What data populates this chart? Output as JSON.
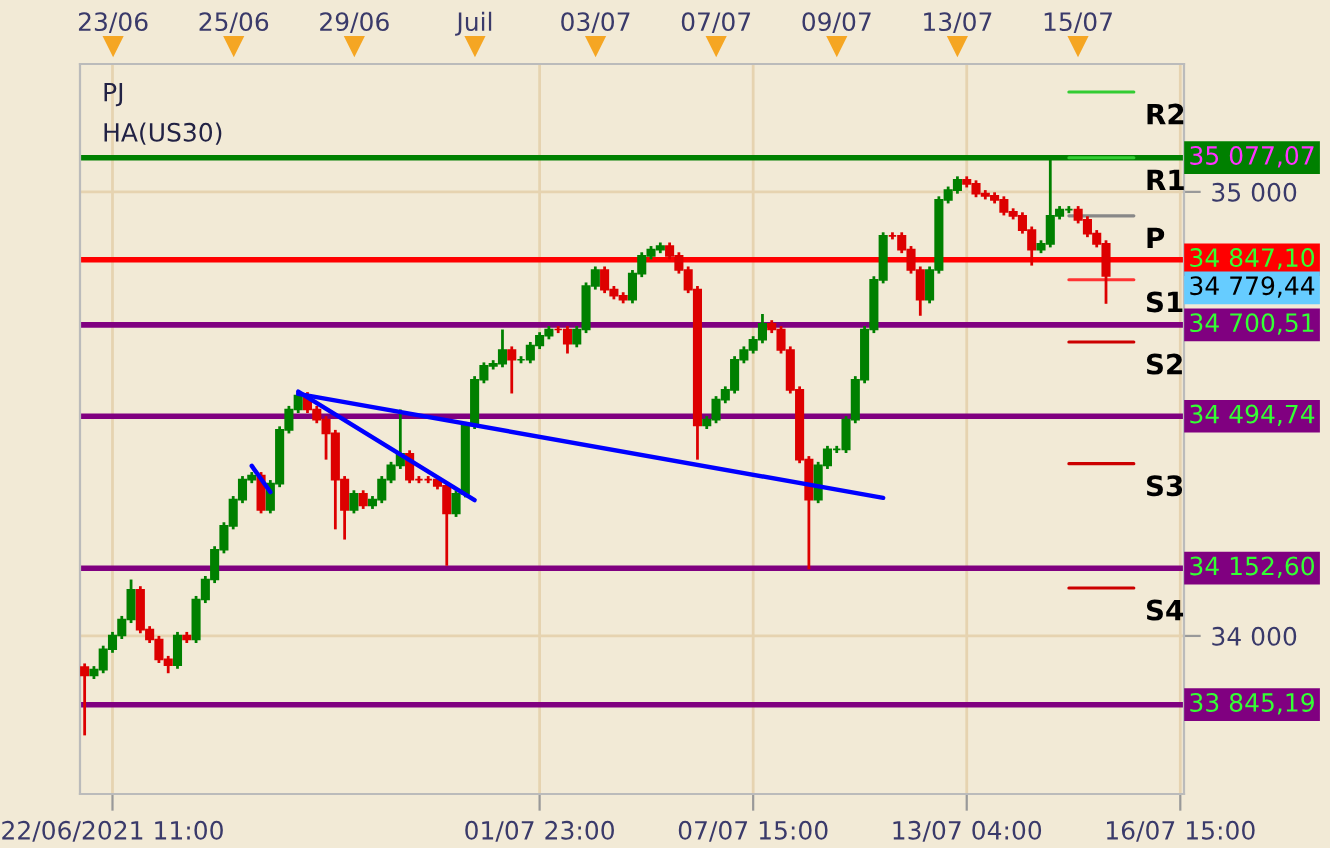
{
  "chart_data": {
    "type": "candlestick",
    "annotations": [
      "PJ",
      "HA(US30)",
      "34 779,44",
      "23/06",
      "25/06",
      "29/06",
      "Juil",
      "03/07",
      "07/07",
      "09/07",
      "13/07",
      "15/07"
    ],
    "categories": [
      null,
      null,
      null,
      "22/06/2021 11:00",
      null,
      null,
      null,
      null,
      null,
      null,
      null,
      null,
      null,
      null,
      null,
      null,
      null,
      null,
      null,
      null,
      null,
      null,
      null,
      null,
      null,
      null,
      null,
      null,
      null,
      null,
      null,
      null,
      null,
      null,
      null,
      null,
      null,
      null,
      null,
      null,
      null,
      null,
      null,
      null,
      null,
      null,
      null,
      null,
      null,
      "01/07 23:00",
      null,
      null,
      null,
      null,
      null,
      null,
      null,
      null,
      null,
      null,
      null,
      null,
      null,
      null,
      null,
      null,
      null,
      null,
      null,
      null,
      null,
      null,
      "07/07 15:00",
      null,
      null,
      null,
      null,
      null,
      null,
      null,
      null,
      null,
      null,
      null,
      null,
      null,
      null,
      null,
      null,
      null,
      null,
      null,
      null,
      null,
      null,
      "13/07 04:00",
      null,
      null,
      null,
      null,
      null,
      null,
      null,
      null,
      null,
      null,
      null,
      null,
      null,
      null,
      null,
      null,
      null,
      null,
      null,
      null,
      null,
      null,
      "16/07 15:00"
    ],
    "ohlc": [
      [
        33930,
        33938,
        33776,
        33911
      ],
      [
        33911,
        33932,
        33903,
        33924
      ],
      [
        33924,
        33978,
        33916,
        33970
      ],
      [
        33970,
        34009,
        33962,
        34001
      ],
      [
        34001,
        34045,
        33993,
        34037
      ],
      [
        34037,
        34127,
        34029,
        34104
      ],
      [
        34104,
        34112,
        34006,
        34014
      ],
      [
        34014,
        34022,
        33984,
        33992
      ],
      [
        33992,
        34000,
        33939,
        33947
      ],
      [
        33947,
        33955,
        33916,
        33934
      ],
      [
        33934,
        34009,
        33926,
        34001
      ],
      [
        34001,
        34009,
        33984,
        33992
      ],
      [
        33992,
        34090,
        33984,
        34082
      ],
      [
        34082,
        34135,
        34074,
        34127
      ],
      [
        34127,
        34202,
        34119,
        34194
      ],
      [
        34194,
        34256,
        34186,
        34248
      ],
      [
        34248,
        34315,
        34240,
        34307
      ],
      [
        34307,
        34360,
        34299,
        34352
      ],
      [
        34352,
        34369,
        34344,
        34361
      ],
      [
        34361,
        34369,
        34276,
        34284
      ],
      [
        34284,
        34351,
        34276,
        34343
      ],
      [
        34343,
        34472,
        34335,
        34464
      ],
      [
        34464,
        34518,
        34456,
        34510
      ],
      [
        34510,
        34549,
        34502,
        34541
      ],
      [
        34541,
        34549,
        34502,
        34510
      ],
      [
        34510,
        34518,
        34479,
        34487
      ],
      [
        34487,
        34495,
        34397,
        34456
      ],
      [
        34456,
        34464,
        34240,
        34352
      ],
      [
        34352,
        34360,
        34217,
        34284
      ],
      [
        34284,
        34328,
        34276,
        34320
      ],
      [
        34320,
        34328,
        34286,
        34294
      ],
      [
        34294,
        34315,
        34286,
        34307
      ],
      [
        34307,
        34360,
        34299,
        34352
      ],
      [
        34352,
        34392,
        34344,
        34384
      ],
      [
        34384,
        34510,
        34376,
        34410
      ],
      [
        34410,
        34418,
        34344,
        34352
      ],
      [
        34352,
        34360,
        34344,
        34352
      ],
      [
        34352,
        34360,
        34344,
        34352
      ],
      [
        34352,
        34360,
        34330,
        34338
      ],
      [
        34338,
        34346,
        34158,
        34276
      ],
      [
        34276,
        34328,
        34268,
        34320
      ],
      [
        34320,
        34482,
        34312,
        34474
      ],
      [
        34474,
        34585,
        34466,
        34577
      ],
      [
        34577,
        34616,
        34569,
        34608
      ],
      [
        34608,
        34621,
        34600,
        34613
      ],
      [
        34613,
        34690,
        34605,
        34644
      ],
      [
        34644,
        34652,
        34546,
        34622
      ],
      [
        34622,
        34630,
        34614,
        34622
      ],
      [
        34622,
        34662,
        34614,
        34654
      ],
      [
        34654,
        34684,
        34646,
        34676
      ],
      [
        34676,
        34698,
        34668,
        34690
      ],
      [
        34690,
        34698,
        34682,
        34690
      ],
      [
        34690,
        34698,
        34636,
        34658
      ],
      [
        34658,
        34698,
        34650,
        34690
      ],
      [
        34690,
        34796,
        34682,
        34788
      ],
      [
        34788,
        34832,
        34780,
        34824
      ],
      [
        34824,
        34832,
        34772,
        34780
      ],
      [
        34780,
        34788,
        34758,
        34766
      ],
      [
        34766,
        34774,
        34749,
        34757
      ],
      [
        34757,
        34824,
        34749,
        34816
      ],
      [
        34816,
        34864,
        34808,
        34856
      ],
      [
        34856,
        34878,
        34848,
        34870
      ],
      [
        34870,
        34886,
        34862,
        34878
      ],
      [
        34878,
        34886,
        34848,
        34856
      ],
      [
        34856,
        34864,
        34816,
        34824
      ],
      [
        34824,
        34832,
        34772,
        34780
      ],
      [
        34780,
        34788,
        34397,
        34474
      ],
      [
        34474,
        34495,
        34466,
        34487
      ],
      [
        34487,
        34540,
        34479,
        34532
      ],
      [
        34532,
        34562,
        34524,
        34554
      ],
      [
        34554,
        34630,
        34546,
        34622
      ],
      [
        34622,
        34652,
        34614,
        34644
      ],
      [
        34644,
        34675,
        34636,
        34667
      ],
      [
        34667,
        34725,
        34659,
        34703
      ],
      [
        34703,
        34711,
        34682,
        34690
      ],
      [
        34690,
        34698,
        34636,
        34644
      ],
      [
        34644,
        34652,
        34546,
        34554
      ],
      [
        34554,
        34562,
        34389,
        34397
      ],
      [
        34397,
        34405,
        34150,
        34307
      ],
      [
        34307,
        34392,
        34299,
        34384
      ],
      [
        34384,
        34428,
        34376,
        34420
      ],
      [
        34420,
        34428,
        34412,
        34420
      ],
      [
        34420,
        34495,
        34412,
        34487
      ],
      [
        34487,
        34585,
        34479,
        34577
      ],
      [
        34577,
        34698,
        34569,
        34690
      ],
      [
        34690,
        34810,
        34682,
        34802
      ],
      [
        34802,
        34909,
        34794,
        34901
      ],
      [
        34901,
        34909,
        34893,
        34901
      ],
      [
        34901,
        34909,
        34862,
        34870
      ],
      [
        34870,
        34878,
        34816,
        34824
      ],
      [
        34824,
        34832,
        34721,
        34757
      ],
      [
        34757,
        34832,
        34749,
        34824
      ],
      [
        34824,
        34990,
        34816,
        34982
      ],
      [
        34982,
        35012,
        34974,
        35004
      ],
      [
        35004,
        35035,
        34996,
        35027
      ],
      [
        35027,
        35035,
        35010,
        35018
      ],
      [
        35018,
        35026,
        34988,
        34996
      ],
      [
        34996,
        35004,
        34983,
        34991
      ],
      [
        34991,
        34999,
        34974,
        34982
      ],
      [
        34982,
        34990,
        34947,
        34955
      ],
      [
        34955,
        34963,
        34938,
        34946
      ],
      [
        34946,
        34954,
        34906,
        34914
      ],
      [
        34914,
        34922,
        34834,
        34870
      ],
      [
        34870,
        34891,
        34862,
        34883
      ],
      [
        34883,
        35081,
        34875,
        34946
      ],
      [
        34946,
        34968,
        34938,
        34960
      ],
      [
        34960,
        34968,
        34952,
        34960
      ],
      [
        34960,
        34968,
        34929,
        34937
      ],
      [
        34937,
        34945,
        34898,
        34906
      ],
      [
        34906,
        34914,
        34875,
        34883
      ],
      [
        34883,
        34891,
        34748,
        34811
      ],
      null,
      null,
      null,
      null,
      null,
      null,
      null,
      null
    ],
    "colors": [
      "#dd0000",
      "#008000",
      "#008000",
      "#008000",
      "#008000",
      "#008000",
      "#dd0000",
      "#dd0000",
      "#dd0000",
      "#dd0000",
      "#008000",
      "#dd0000",
      "#008000",
      "#008000",
      "#008000",
      "#008000",
      "#008000",
      "#008000",
      "#008000",
      "#dd0000",
      "#008000",
      "#008000",
      "#008000",
      "#008000",
      "#dd0000",
      "#dd0000",
      "#dd0000",
      "#dd0000",
      "#dd0000",
      "#008000",
      "#dd0000",
      "#008000",
      "#008000",
      "#008000",
      "#008000",
      "#dd0000",
      "#dd0000",
      "#dd0000",
      "#dd0000",
      "#dd0000",
      "#008000",
      "#008000",
      "#008000",
      "#008000",
      "#008000",
      "#008000",
      "#dd0000",
      "#008000",
      "#008000",
      "#008000",
      "#008000",
      "#dd0000",
      "#dd0000",
      "#008000",
      "#008000",
      "#008000",
      "#dd0000",
      "#dd0000",
      "#dd0000",
      "#008000",
      "#008000",
      "#008000",
      "#008000",
      "#dd0000",
      "#dd0000",
      "#dd0000",
      "#dd0000",
      "#008000",
      "#008000",
      "#008000",
      "#008000",
      "#008000",
      "#008000",
      "#008000",
      "#dd0000",
      "#dd0000",
      "#dd0000",
      "#dd0000",
      "#dd0000",
      "#008000",
      "#008000",
      "#008000",
      "#008000",
      "#008000",
      "#008000",
      "#008000",
      "#008000",
      "#dd0000",
      "#dd0000",
      "#dd0000",
      "#dd0000",
      "#008000",
      "#008000",
      "#008000",
      "#008000",
      "#dd0000",
      "#dd0000",
      "#dd0000",
      "#dd0000",
      "#dd0000",
      "#dd0000",
      "#dd0000",
      "#dd0000",
      "#008000",
      "#008000",
      "#008000",
      "#008000",
      "#dd0000",
      "#dd0000",
      "#dd0000",
      "#dd0000",
      null,
      null,
      null,
      null,
      null,
      null,
      null,
      null
    ],
    "series": [
      {
        "type": "line",
        "color": "#0000ff",
        "values": [
          null,
          null,
          null,
          null,
          null,
          null,
          null,
          null,
          null,
          null,
          null,
          null,
          null,
          null,
          null,
          null,
          null,
          null,
          null,
          null,
          null,
          null,
          null,
          34545,
          null,
          null,
          null,
          null,
          null,
          null,
          null,
          null,
          null,
          null,
          null,
          null,
          null,
          null,
          null,
          null,
          null,
          null,
          null,
          null,
          null,
          null,
          null,
          null,
          null,
          null,
          null,
          null,
          null,
          null,
          null,
          null,
          null,
          null,
          null,
          null,
          null,
          null,
          null,
          null,
          null,
          null,
          null,
          null,
          null,
          null,
          null,
          null,
          null,
          null,
          null,
          null,
          null,
          null,
          null,
          null,
          null,
          null,
          null,
          null,
          null,
          null,
          34311,
          null,
          null,
          null,
          null,
          null,
          null,
          null,
          null,
          null,
          null,
          null,
          null,
          null,
          null,
          null,
          null,
          null,
          null,
          null,
          null,
          null,
          null,
          null,
          null,
          null,
          null,
          null,
          null,
          null,
          null,
          null,
          null
        ]
      },
      {
        "type": "line",
        "color": "#0000ff",
        "values": [
          null,
          null,
          null,
          null,
          null,
          null,
          null,
          null,
          null,
          null,
          null,
          null,
          null,
          null,
          null,
          null,
          null,
          null,
          null,
          null,
          null,
          null,
          null,
          34550,
          null,
          null,
          null,
          null,
          null,
          null,
          null,
          null,
          null,
          null,
          null,
          null,
          null,
          null,
          null,
          null,
          null,
          null,
          34306,
          null,
          null,
          null,
          null,
          null,
          null,
          null,
          null,
          null,
          null,
          null,
          null,
          null,
          null,
          null,
          null,
          null,
          null,
          null,
          null,
          null,
          null,
          null,
          null,
          null,
          null,
          null,
          null,
          null,
          null,
          null,
          null,
          null,
          null,
          null,
          null,
          null,
          null,
          null,
          null,
          null,
          null,
          null,
          null,
          null,
          null,
          null,
          null,
          null,
          null,
          null,
          null,
          null,
          null,
          null,
          null,
          null,
          null,
          null,
          null,
          null,
          null,
          null,
          null,
          null,
          null,
          null,
          null,
          null,
          null,
          null,
          null,
          null,
          null,
          null,
          null
        ]
      },
      {
        "type": "line",
        "color": "#0000ff",
        "values": [
          null,
          null,
          null,
          null,
          null,
          null,
          null,
          null,
          null,
          null,
          null,
          null,
          null,
          null,
          null,
          null,
          null,
          null,
          34383,
          null,
          34324,
          null,
          null,
          null,
          null,
          null,
          null,
          null,
          null,
          null,
          null,
          null,
          null,
          null,
          null,
          null,
          null,
          null,
          null,
          null,
          null,
          null,
          null,
          null,
          null,
          null,
          null,
          null,
          null,
          null,
          null,
          null,
          null,
          null,
          null,
          null,
          null,
          null,
          null,
          null,
          null,
          null,
          null,
          null,
          null,
          null,
          null,
          null,
          null,
          null,
          null,
          null,
          null,
          null,
          null,
          null,
          null,
          null,
          null,
          null,
          null,
          null,
          null,
          null,
          null,
          null,
          null,
          null,
          null,
          null,
          null,
          null,
          null,
          null,
          null,
          null,
          null,
          null,
          null,
          null,
          null,
          null,
          null,
          null,
          null,
          null,
          null,
          null,
          null,
          null,
          null,
          null,
          null,
          null,
          null,
          null,
          null,
          null,
          null
        ]
      },
      {
        "type": "line",
        "name": "R2",
        "color": "#33cc33",
        "values": [
          null,
          null,
          null,
          null,
          null,
          null,
          null,
          null,
          null,
          null,
          null,
          null,
          null,
          null,
          null,
          null,
          null,
          null,
          null,
          null,
          null,
          null,
          null,
          null,
          null,
          null,
          null,
          null,
          null,
          null,
          null,
          null,
          null,
          null,
          null,
          null,
          null,
          null,
          null,
          null,
          null,
          null,
          null,
          null,
          null,
          null,
          null,
          null,
          null,
          null,
          null,
          null,
          null,
          null,
          null,
          null,
          null,
          null,
          null,
          null,
          null,
          null,
          null,
          null,
          null,
          null,
          null,
          null,
          null,
          null,
          null,
          null,
          null,
          null,
          null,
          null,
          null,
          null,
          null,
          null,
          null,
          null,
          null,
          null,
          null,
          null,
          null,
          null,
          null,
          null,
          null,
          null,
          null,
          null,
          null,
          null,
          null,
          null,
          null,
          null,
          null,
          null,
          null,
          null,
          null,
          null,
          35225,
          null,
          null,
          null,
          null,
          null,
          null,
          35225,
          null,
          null,
          null,
          null,
          null
        ]
      },
      {
        "type": "line",
        "name": "R1",
        "color": "#33cc33",
        "values": [
          null,
          null,
          null,
          null,
          null,
          null,
          null,
          null,
          null,
          null,
          null,
          null,
          null,
          null,
          null,
          null,
          null,
          null,
          null,
          null,
          null,
          null,
          null,
          null,
          null,
          null,
          null,
          null,
          null,
          null,
          null,
          null,
          null,
          null,
          null,
          null,
          null,
          null,
          null,
          null,
          null,
          null,
          null,
          null,
          null,
          null,
          null,
          null,
          null,
          null,
          null,
          null,
          null,
          null,
          null,
          null,
          null,
          null,
          null,
          null,
          null,
          null,
          null,
          null,
          null,
          null,
          null,
          null,
          null,
          null,
          null,
          null,
          null,
          null,
          null,
          null,
          null,
          null,
          null,
          null,
          null,
          null,
          null,
          null,
          null,
          null,
          null,
          null,
          null,
          null,
          null,
          null,
          null,
          null,
          null,
          null,
          null,
          null,
          null,
          null,
          null,
          null,
          null,
          null,
          null,
          null,
          35077,
          null,
          null,
          null,
          null,
          null,
          null,
          35077,
          null,
          null,
          null,
          null,
          null
        ]
      },
      {
        "type": "line",
        "name": "P",
        "color": "#888888",
        "values": [
          null,
          null,
          null,
          null,
          null,
          null,
          null,
          null,
          null,
          null,
          null,
          null,
          null,
          null,
          null,
          null,
          null,
          null,
          null,
          null,
          null,
          null,
          null,
          null,
          null,
          null,
          null,
          null,
          null,
          null,
          null,
          null,
          null,
          null,
          null,
          null,
          null,
          null,
          null,
          null,
          null,
          null,
          null,
          null,
          null,
          null,
          null,
          null,
          null,
          null,
          null,
          null,
          null,
          null,
          null,
          null,
          null,
          null,
          null,
          null,
          null,
          null,
          null,
          null,
          null,
          null,
          null,
          null,
          null,
          null,
          null,
          null,
          null,
          null,
          null,
          null,
          null,
          null,
          null,
          null,
          null,
          null,
          null,
          null,
          null,
          null,
          null,
          null,
          null,
          null,
          null,
          null,
          null,
          null,
          null,
          null,
          null,
          null,
          null,
          null,
          null,
          null,
          null,
          null,
          null,
          null,
          34946,
          null,
          null,
          null,
          null,
          null,
          null,
          34946,
          null,
          null,
          null,
          null,
          null
        ]
      },
      {
        "type": "line",
        "name": "S1",
        "color": "#ff3333",
        "values": [
          null,
          null,
          null,
          null,
          null,
          null,
          null,
          null,
          null,
          null,
          null,
          null,
          null,
          null,
          null,
          null,
          null,
          null,
          null,
          null,
          null,
          null,
          null,
          null,
          null,
          null,
          null,
          null,
          null,
          null,
          null,
          null,
          null,
          null,
          null,
          null,
          null,
          null,
          null,
          null,
          null,
          null,
          null,
          null,
          null,
          null,
          null,
          null,
          null,
          null,
          null,
          null,
          null,
          null,
          null,
          null,
          null,
          null,
          null,
          null,
          null,
          null,
          null,
          null,
          null,
          null,
          null,
          null,
          null,
          null,
          null,
          null,
          null,
          null,
          null,
          null,
          null,
          null,
          null,
          null,
          null,
          null,
          null,
          null,
          null,
          null,
          null,
          null,
          null,
          null,
          null,
          null,
          null,
          null,
          null,
          null,
          null,
          null,
          null,
          null,
          null,
          null,
          null,
          null,
          null,
          null,
          34802,
          null,
          null,
          null,
          null,
          null,
          null,
          34802,
          null,
          null,
          null,
          null,
          null
        ]
      },
      {
        "type": "line",
        "name": "S2",
        "color": "#cc0000",
        "values": [
          null,
          null,
          null,
          null,
          null,
          null,
          null,
          null,
          null,
          null,
          null,
          null,
          null,
          null,
          null,
          null,
          null,
          null,
          null,
          null,
          null,
          null,
          null,
          null,
          null,
          null,
          null,
          null,
          null,
          null,
          null,
          null,
          null,
          null,
          null,
          null,
          null,
          null,
          null,
          null,
          null,
          null,
          null,
          null,
          null,
          null,
          null,
          null,
          null,
          null,
          null,
          null,
          null,
          null,
          null,
          null,
          null,
          null,
          null,
          null,
          null,
          null,
          null,
          null,
          null,
          null,
          null,
          null,
          null,
          null,
          null,
          null,
          null,
          null,
          null,
          null,
          null,
          null,
          null,
          null,
          null,
          null,
          null,
          null,
          null,
          null,
          null,
          null,
          null,
          null,
          null,
          null,
          null,
          null,
          null,
          null,
          null,
          null,
          null,
          null,
          null,
          null,
          null,
          null,
          null,
          null,
          34662,
          null,
          null,
          null,
          null,
          null,
          null,
          34662,
          null,
          null,
          null,
          null,
          null
        ]
      },
      {
        "type": "line",
        "name": "S3",
        "color": "#cc0000",
        "values": [
          null,
          null,
          null,
          null,
          null,
          null,
          null,
          null,
          null,
          null,
          null,
          null,
          null,
          null,
          null,
          null,
          null,
          null,
          null,
          null,
          null,
          null,
          null,
          null,
          null,
          null,
          null,
          null,
          null,
          null,
          null,
          null,
          null,
          null,
          null,
          null,
          null,
          null,
          null,
          null,
          null,
          null,
          null,
          null,
          null,
          null,
          null,
          null,
          null,
          null,
          null,
          null,
          null,
          null,
          null,
          null,
          null,
          null,
          null,
          null,
          null,
          null,
          null,
          null,
          null,
          null,
          null,
          null,
          null,
          null,
          null,
          null,
          null,
          null,
          null,
          null,
          null,
          null,
          null,
          null,
          null,
          null,
          null,
          null,
          null,
          null,
          null,
          null,
          null,
          null,
          null,
          null,
          null,
          null,
          null,
          null,
          null,
          null,
          null,
          null,
          null,
          null,
          null,
          null,
          null,
          null,
          34388,
          null,
          null,
          null,
          null,
          null,
          null,
          34388,
          null,
          null,
          null,
          null,
          null
        ]
      },
      {
        "type": "line",
        "name": "S4",
        "color": "#cc0000",
        "values": [
          null,
          null,
          null,
          null,
          null,
          null,
          null,
          null,
          null,
          null,
          null,
          null,
          null,
          null,
          null,
          null,
          null,
          null,
          null,
          null,
          null,
          null,
          null,
          null,
          null,
          null,
          null,
          null,
          null,
          null,
          null,
          null,
          null,
          null,
          null,
          null,
          null,
          null,
          null,
          null,
          null,
          null,
          null,
          null,
          null,
          null,
          null,
          null,
          null,
          null,
          null,
          null,
          null,
          null,
          null,
          null,
          null,
          null,
          null,
          null,
          null,
          null,
          null,
          null,
          null,
          null,
          null,
          null,
          null,
          null,
          null,
          null,
          null,
          null,
          null,
          null,
          null,
          null,
          null,
          null,
          null,
          null,
          null,
          null,
          null,
          null,
          null,
          null,
          null,
          null,
          null,
          null,
          null,
          null,
          null,
          null,
          null,
          null,
          null,
          null,
          null,
          null,
          null,
          null,
          null,
          null,
          34108,
          null,
          null,
          null,
          null,
          null,
          null,
          34108,
          null,
          null,
          null,
          null,
          null
        ]
      }
    ],
    "ylim": [
      33644,
      35288
    ],
    "yticks": [
      {
        "value": 34000,
        "label": "34 000"
      },
      {
        "value": 35000,
        "label": "35 000"
      }
    ],
    "ref_lines": [
      {
        "axis": "y",
        "value": 35077.07,
        "label": "35 077,07",
        "color": "#008000"
      },
      {
        "axis": "y",
        "value": 34847.1,
        "label": "34 847,10",
        "color": "#ff0000"
      },
      {
        "axis": "y",
        "value": 34700.51,
        "label": "34 700,51",
        "color": "#800080"
      },
      {
        "axis": "y",
        "value": 34494.74,
        "label": "34 494,74",
        "color": "#800080"
      },
      {
        "axis": "y",
        "value": 34152.6,
        "label": "34 152,60",
        "color": "#800080"
      },
      {
        "axis": "y",
        "value": 33845.19,
        "label": "33 845,19",
        "color": "#800080"
      }
    ],
    "grid": true
  }
}
